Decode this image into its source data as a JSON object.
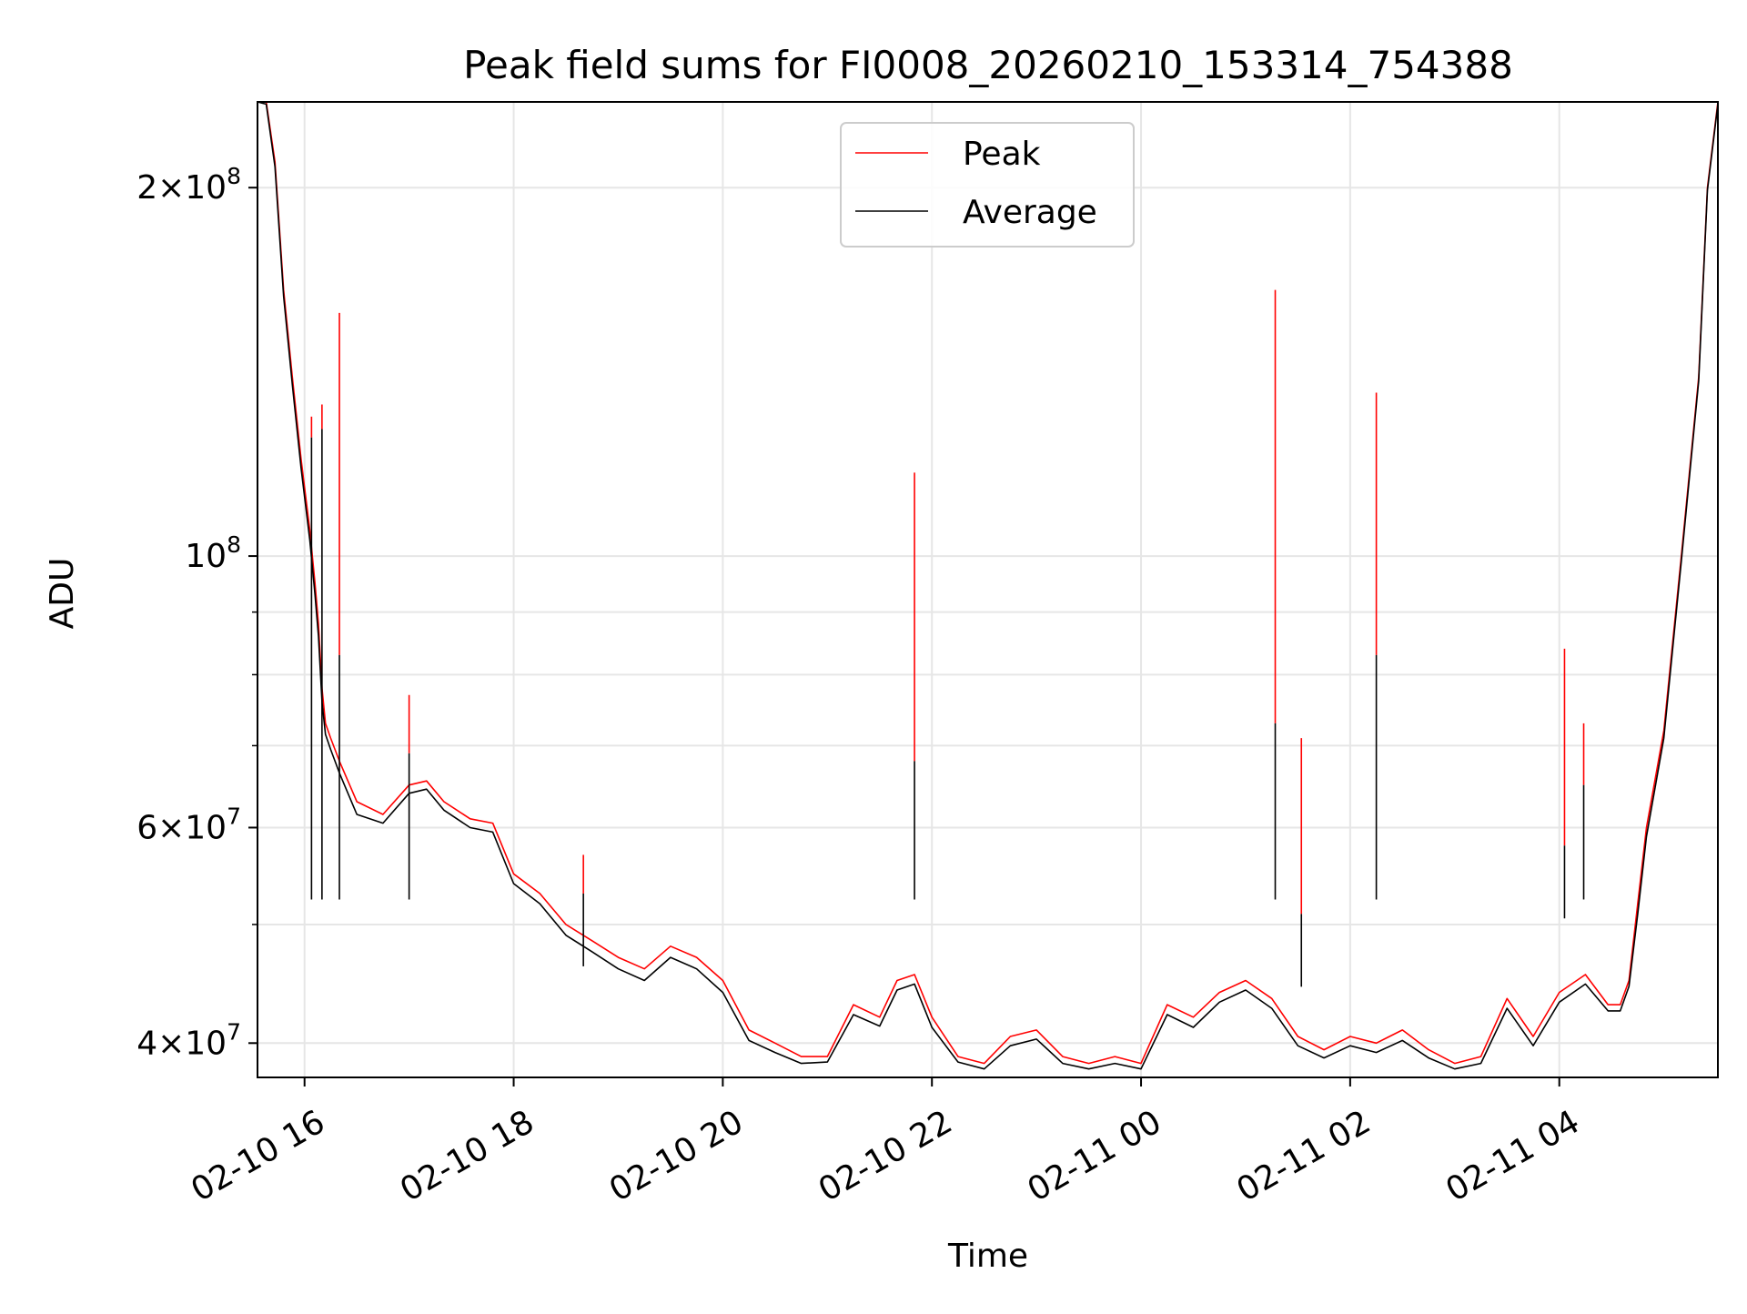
{
  "chart_data": {
    "type": "line",
    "title": "Peak field sums for FI0008_20260210_153314_754388",
    "xlabel": "Time",
    "ylabel": "ADU",
    "xlim": [
      "2026-02-10 15:33",
      "2026-02-11 05:31"
    ],
    "ylim": [
      37500000,
      235000000
    ],
    "yscale": "log",
    "grid": true,
    "legend_position": "top-center",
    "x_ticks": [
      {
        "t": "2026-02-10 16:00",
        "label": "02-10 16"
      },
      {
        "t": "2026-02-10 18:00",
        "label": "02-10 18"
      },
      {
        "t": "2026-02-10 20:00",
        "label": "02-10 20"
      },
      {
        "t": "2026-02-10 22:00",
        "label": "02-10 22"
      },
      {
        "t": "2026-02-11 00:00",
        "label": "02-11 00"
      },
      {
        "t": "2026-02-11 02:00",
        "label": "02-11 02"
      },
      {
        "t": "2026-02-11 04:00",
        "label": "02-11 04"
      }
    ],
    "y_ticks_major": [
      {
        "v": 40000000,
        "mantissa": "4",
        "exp": "7"
      },
      {
        "v": 60000000,
        "mantissa": "6",
        "exp": "7"
      },
      {
        "v": 100000000,
        "mantissa": "",
        "exp": "8"
      },
      {
        "v": 200000000,
        "mantissa": "2",
        "exp": "8"
      }
    ],
    "y_ticks_minor": [
      50000000,
      70000000,
      80000000,
      90000000
    ],
    "series": [
      {
        "name": "Peak",
        "color": "#ff0000",
        "x": [
          "2026-02-10 15:33",
          "2026-02-10 15:38",
          "2026-02-10 15:43",
          "2026-02-10 15:48",
          "2026-02-10 15:53",
          "2026-02-10 15:58",
          "2026-02-10 16:03",
          "2026-02-10 16:06",
          "2026-02-10 16:08",
          "2026-02-10 16:10",
          "2026-02-10 16:12",
          "2026-02-10 16:15",
          "2026-02-10 16:20",
          "2026-02-10 16:30",
          "2026-02-10 16:45",
          "2026-02-10 17:00",
          "2026-02-10 17:10",
          "2026-02-10 17:20",
          "2026-02-10 17:35",
          "2026-02-10 17:48",
          "2026-02-10 18:00",
          "2026-02-10 18:15",
          "2026-02-10 18:30",
          "2026-02-10 18:45",
          "2026-02-10 19:00",
          "2026-02-10 19:15",
          "2026-02-10 19:30",
          "2026-02-10 19:45",
          "2026-02-10 20:00",
          "2026-02-10 20:15",
          "2026-02-10 20:30",
          "2026-02-10 20:45",
          "2026-02-10 21:00",
          "2026-02-10 21:15",
          "2026-02-10 21:30",
          "2026-02-10 21:40",
          "2026-02-10 21:50",
          "2026-02-10 22:00",
          "2026-02-10 22:15",
          "2026-02-10 22:30",
          "2026-02-10 22:45",
          "2026-02-10 23:00",
          "2026-02-10 23:15",
          "2026-02-10 23:30",
          "2026-02-10 23:45",
          "2026-02-11 00:00",
          "2026-02-11 00:15",
          "2026-02-11 00:30",
          "2026-02-11 00:45",
          "2026-02-11 01:00",
          "2026-02-11 01:15",
          "2026-02-11 01:30",
          "2026-02-11 01:45",
          "2026-02-11 02:00",
          "2026-02-11 02:15",
          "2026-02-11 02:30",
          "2026-02-11 02:45",
          "2026-02-11 03:00",
          "2026-02-11 03:15",
          "2026-02-11 03:30",
          "2026-02-11 03:45",
          "2026-02-11 04:00",
          "2026-02-11 04:15",
          "2026-02-11 04:28",
          "2026-02-11 04:35",
          "2026-02-11 04:40",
          "2026-02-11 04:45",
          "2026-02-11 04:50",
          "2026-02-11 05:00",
          "2026-02-11 05:10",
          "2026-02-11 05:20",
          "2026-02-11 05:25",
          "2026-02-11 05:31"
        ],
        "values": [
          235000000,
          235000000,
          210000000,
          165000000,
          140000000,
          120000000,
          105000000,
          95000000,
          88000000,
          78000000,
          73000000,
          71000000,
          68000000,
          63000000,
          61500000,
          65000000,
          65500000,
          63000000,
          61000000,
          60500000,
          55000000,
          53000000,
          50000000,
          48500000,
          47000000,
          46000000,
          48000000,
          47000000,
          45000000,
          41000000,
          40000000,
          39000000,
          39000000,
          43000000,
          42000000,
          45000000,
          45500000,
          42000000,
          39000000,
          38500000,
          40500000,
          41000000,
          39000000,
          38500000,
          39000000,
          38500000,
          43000000,
          42000000,
          44000000,
          45000000,
          43500000,
          40500000,
          39500000,
          40500000,
          40000000,
          41000000,
          39500000,
          38500000,
          39000000,
          43500000,
          40500000,
          44000000,
          45500000,
          43000000,
          43000000,
          45000000,
          52000000,
          60000000,
          72000000,
          100000000,
          140000000,
          200000000,
          235000000
        ]
      },
      {
        "name": "Average",
        "color": "#000000",
        "x": [
          "2026-02-10 15:33",
          "2026-02-10 15:38",
          "2026-02-10 15:43",
          "2026-02-10 15:48",
          "2026-02-10 15:53",
          "2026-02-10 15:58",
          "2026-02-10 16:03",
          "2026-02-10 16:06",
          "2026-02-10 16:08",
          "2026-02-10 16:10",
          "2026-02-10 16:12",
          "2026-02-10 16:15",
          "2026-02-10 16:20",
          "2026-02-10 16:30",
          "2026-02-10 16:45",
          "2026-02-10 17:00",
          "2026-02-10 17:10",
          "2026-02-10 17:20",
          "2026-02-10 17:35",
          "2026-02-10 17:48",
          "2026-02-10 18:00",
          "2026-02-10 18:15",
          "2026-02-10 18:30",
          "2026-02-10 18:45",
          "2026-02-10 19:00",
          "2026-02-10 19:15",
          "2026-02-10 19:30",
          "2026-02-10 19:45",
          "2026-02-10 20:00",
          "2026-02-10 20:15",
          "2026-02-10 20:30",
          "2026-02-10 20:45",
          "2026-02-10 21:00",
          "2026-02-10 21:15",
          "2026-02-10 21:30",
          "2026-02-10 21:40",
          "2026-02-10 21:50",
          "2026-02-10 22:00",
          "2026-02-10 22:15",
          "2026-02-10 22:30",
          "2026-02-10 22:45",
          "2026-02-10 23:00",
          "2026-02-10 23:15",
          "2026-02-10 23:30",
          "2026-02-10 23:45",
          "2026-02-11 00:00",
          "2026-02-11 00:15",
          "2026-02-11 00:30",
          "2026-02-11 00:45",
          "2026-02-11 01:00",
          "2026-02-11 01:15",
          "2026-02-11 01:30",
          "2026-02-11 01:45",
          "2026-02-11 02:00",
          "2026-02-11 02:15",
          "2026-02-11 02:30",
          "2026-02-11 02:45",
          "2026-02-11 03:00",
          "2026-02-11 03:15",
          "2026-02-11 03:30",
          "2026-02-11 03:45",
          "2026-02-11 04:00",
          "2026-02-11 04:15",
          "2026-02-11 04:28",
          "2026-02-11 04:35",
          "2026-02-11 04:40",
          "2026-02-11 04:45",
          "2026-02-11 04:50",
          "2026-02-11 05:00",
          "2026-02-11 05:10",
          "2026-02-11 05:20",
          "2026-02-11 05:25",
          "2026-02-11 05:31"
        ],
        "values": [
          235000000,
          234000000,
          208000000,
          163000000,
          138000000,
          118000000,
          103000000,
          93000000,
          86000000,
          76000000,
          71500000,
          69500000,
          66500000,
          61500000,
          60500000,
          64000000,
          64500000,
          62000000,
          60000000,
          59500000,
          54000000,
          52000000,
          49000000,
          47500000,
          46000000,
          45000000,
          47000000,
          46000000,
          44000000,
          40200000,
          39300000,
          38500000,
          38600000,
          42200000,
          41300000,
          44200000,
          44700000,
          41200000,
          38600000,
          38100000,
          39800000,
          40300000,
          38500000,
          38100000,
          38500000,
          38100000,
          42200000,
          41200000,
          43200000,
          44200000,
          42700000,
          39800000,
          38900000,
          39800000,
          39300000,
          40200000,
          38900000,
          38100000,
          38500000,
          42700000,
          39800000,
          43200000,
          44700000,
          42500000,
          42500000,
          44500000,
          51000000,
          59000000,
          71000000,
          99000000,
          139000000,
          199000000,
          234000000
        ]
      }
    ],
    "spikes": [
      {
        "t": "2026-02-10 16:04",
        "peak": 130000000,
        "average": 125000000
      },
      {
        "t": "2026-02-10 16:10",
        "peak": 133000000,
        "average": 127000000
      },
      {
        "t": "2026-02-10 16:20",
        "peak": 158000000,
        "average": 83000000
      },
      {
        "t": "2026-02-10 17:00",
        "peak": 77000000,
        "average": 69000000
      },
      {
        "t": "2026-02-10 18:40",
        "peak": 57000000,
        "average": 53000000
      },
      {
        "t": "2026-02-10 21:50",
        "peak": 117000000,
        "average": 68000000
      },
      {
        "t": "2026-02-11 01:17",
        "peak": 165000000,
        "average": 73000000
      },
      {
        "t": "2026-02-11 01:32",
        "peak": 71000000,
        "average": 51000000
      },
      {
        "t": "2026-02-11 02:15",
        "peak": 136000000,
        "average": 83000000
      },
      {
        "t": "2026-02-11 04:03",
        "peak": 84000000,
        "average": 58000000
      },
      {
        "t": "2026-02-11 04:14",
        "peak": 73000000,
        "average": 65000000
      }
    ]
  }
}
